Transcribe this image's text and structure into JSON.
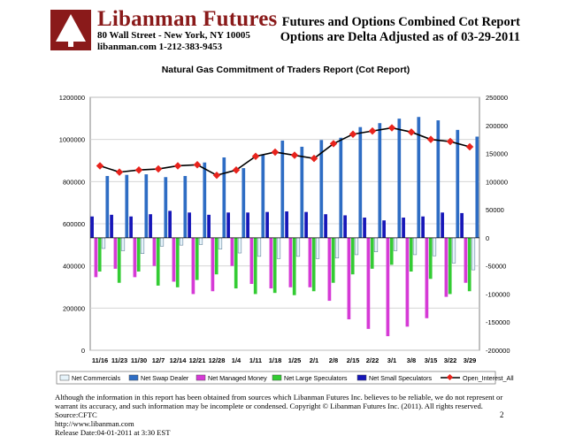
{
  "header": {
    "brand_name": "Libanman Futures",
    "brand_address": "80 Wall Street - New York, NY 10005",
    "brand_contact": "libanman.com      1-212-383-9453",
    "report_title_line1": "Futures and Options Combined Cot Report",
    "report_title_line2": "Options are Delta Adjusted as of 03-29-2011"
  },
  "colors": {
    "net_commercials": "#e6f3fa",
    "net_swap_dealer": "#2e6dc4",
    "net_managed_money": "#d63ad6",
    "net_large_speculators": "#33cc33",
    "net_small_speculators": "#1616b8",
    "open_interest_line": "#000000",
    "open_interest_marker": "#e8231c"
  },
  "chart_data": {
    "type": "bar",
    "title": "Natural Gas Commitment of Traders Report (Cot Report)",
    "categories": [
      "11/16",
      "11/23",
      "11/30",
      "12/7",
      "12/14",
      "12/21",
      "12/28",
      "1/4",
      "1/11",
      "1/18",
      "1/25",
      "2/1",
      "2/8",
      "2/15",
      "2/22",
      "3/1",
      "3/8",
      "3/15",
      "3/22",
      "3/29"
    ],
    "series": [
      {
        "name": "Net Commercials",
        "axis": "right",
        "values": [
          -19000,
          -23000,
          -28000,
          -15000,
          -13000,
          -12000,
          -20000,
          -27000,
          -33000,
          -37000,
          -33000,
          -37000,
          -36000,
          -30000,
          -25000,
          -23000,
          -30000,
          -32000,
          -45000,
          -57000
        ]
      },
      {
        "name": "Net Swap Dealer",
        "axis": "right",
        "values": [
          110000,
          112000,
          113000,
          108000,
          110000,
          134000,
          143000,
          124000,
          148000,
          173000,
          162000,
          174000,
          178000,
          197000,
          204000,
          212000,
          215000,
          209000,
          192000,
          180000
        ]
      },
      {
        "name": "Net Managed Money",
        "axis": "right",
        "values": [
          -70000,
          -55000,
          -70000,
          -50000,
          -78000,
          -100000,
          -95000,
          -50000,
          -82000,
          -90000,
          -88000,
          -88000,
          -112000,
          -145000,
          -162000,
          -175000,
          -158000,
          -143000,
          -105000,
          -80000
        ]
      },
      {
        "name": "Net Large Speculators",
        "axis": "right",
        "values": [
          -60000,
          -80000,
          -60000,
          -85000,
          -88000,
          -75000,
          -65000,
          -90000,
          -100000,
          -98000,
          -102000,
          -95000,
          -80000,
          -65000,
          -55000,
          -48000,
          -60000,
          -73000,
          -100000,
          -95000
        ]
      },
      {
        "name": "Net Small Speculators",
        "axis": "right",
        "values": [
          38000,
          41000,
          38000,
          42000,
          48000,
          45000,
          41000,
          45000,
          45000,
          46000,
          47000,
          46000,
          42000,
          40000,
          36000,
          31000,
          36000,
          38000,
          45000,
          44000
        ]
      }
    ],
    "line_series": {
      "name": "Open_Interest_All",
      "axis": "left",
      "values": [
        875000,
        845000,
        855000,
        860000,
        875000,
        880000,
        830000,
        855000,
        920000,
        940000,
        925000,
        910000,
        980000,
        1025000,
        1040000,
        1055000,
        1035000,
        1000000,
        990000,
        965000
      ]
    },
    "left_axis": {
      "min": 0,
      "max": 1200000,
      "ticks": [
        "0",
        "200000",
        "400000",
        "600000",
        "800000",
        "1000000",
        "1200000"
      ]
    },
    "right_axis": {
      "min": -200000,
      "max": 250000,
      "ticks": [
        "-200000",
        "-150000",
        "-100000",
        "-50000",
        "0",
        "50000",
        "100000",
        "150000",
        "200000",
        "250000"
      ]
    },
    "legend_position": "bottom"
  },
  "footer": {
    "disclaimer": "Although the information in this report has been obtained from sources which Libanman Futures Inc. believes to be reliable, we do not represent or warrant its accuracy, and such information may be incomplete or condensed. Copyright © Libanman Futures Inc. (2011). All rights reserved.  Source:CFTC",
    "url": "http://www.libanman.com",
    "release_date": "Release Date:04-01-2011 at 3:30 EST",
    "page_number": "2"
  }
}
